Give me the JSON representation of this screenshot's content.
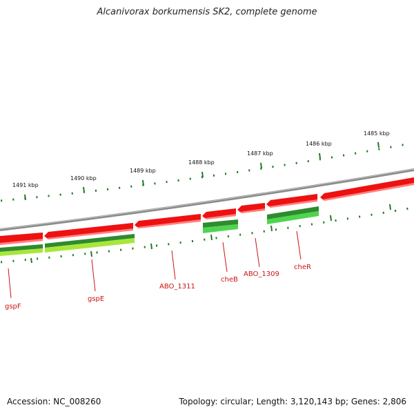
{
  "title": "Alcanivorax borkumensis SK2, complete genome",
  "footer": {
    "accession": "Accession: NC_008260",
    "summary": "Topology: circular; Length: 3,120,143 bp; Genes: 2,806"
  },
  "colors": {
    "backbone": "#8a8a8a",
    "forward_strand": "#ee1111",
    "reverse_strand": "#2e8b2e",
    "reverse_strand_alt": "#a8e63a",
    "tick": "#1f7a1f",
    "label": "#cc1111"
  },
  "scale": {
    "unit": "kbp",
    "labels": [
      "1491 kbp",
      "1490 kbp",
      "1489 kbp",
      "1488 kbp",
      "1487 kbp",
      "1486 kbp",
      "1485 kbp"
    ]
  },
  "gene_labels": [
    {
      "name": "gspF"
    },
    {
      "name": "gspE"
    },
    {
      "name": "ABO_1311"
    },
    {
      "name": "cheB"
    },
    {
      "name": "ABO_1309"
    },
    {
      "name": "cheR"
    }
  ]
}
